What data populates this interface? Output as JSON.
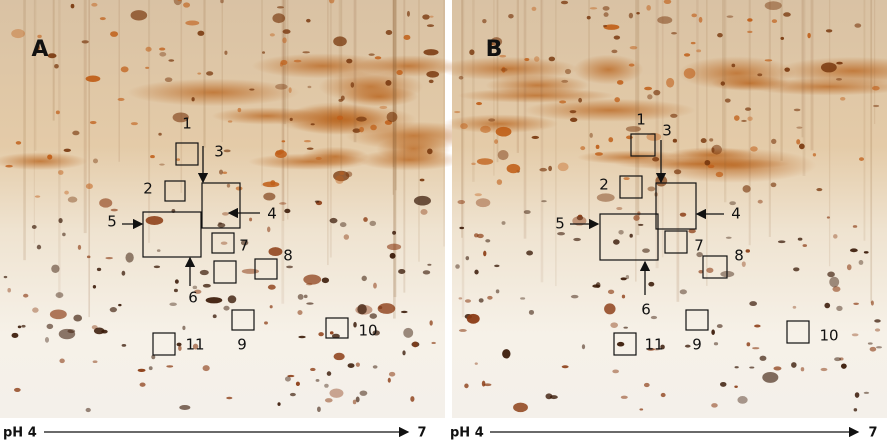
{
  "panels": [
    {
      "label": "A",
      "annotations": [
        "1",
        "2",
        "3",
        "4",
        "5",
        "6",
        "7",
        "8",
        "9",
        "10",
        "11"
      ],
      "axis_start": "pH 4",
      "axis_end": "7"
    },
    {
      "label": "B",
      "annotations": [
        "1",
        "2",
        "3",
        "4",
        "5",
        "6",
        "7",
        "8",
        "9",
        "10",
        "11"
      ],
      "axis_start": "pH 4",
      "axis_end": "7"
    }
  ]
}
